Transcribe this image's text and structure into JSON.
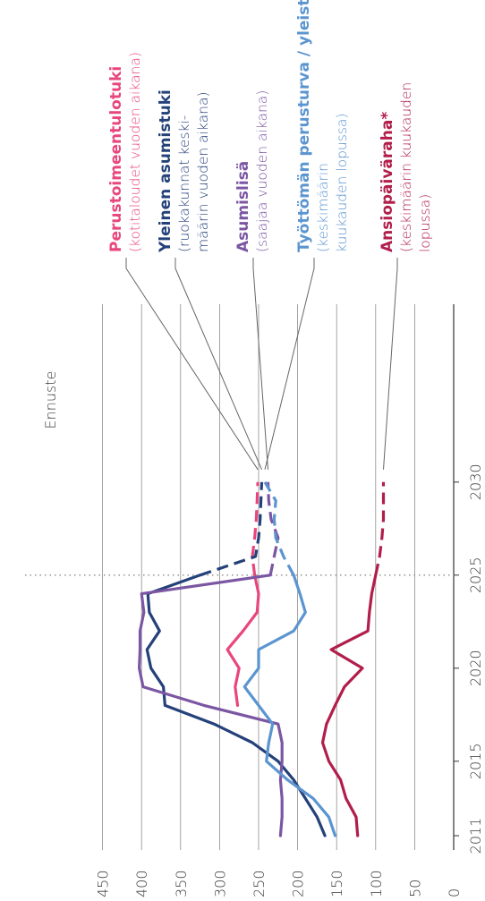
{
  "chart_data": {
    "type": "line",
    "orientation": "rotated-90-ccw",
    "x": [
      2011,
      2012,
      2013,
      2014,
      2015,
      2016,
      2017,
      2018,
      2019,
      2020,
      2021,
      2022,
      2023,
      2024,
      2025,
      2026,
      2027,
      2028,
      2029,
      2030
    ],
    "x_ticks": [
      "2011",
      "2015",
      "2020",
      "2025",
      "2030"
    ],
    "y_ticks": [
      "0",
      "50",
      "100",
      "150",
      "200",
      "250",
      "300",
      "350",
      "400",
      "450"
    ],
    "ylim": [
      0,
      450
    ],
    "forecast_start": 2025,
    "forecast_label": "Ennuste",
    "grid": true,
    "series": [
      {
        "name": "Perustoimeentulotuki",
        "description": "(kotitaloudet vuoden aikana)",
        "color": "#e8467c",
        "values": [
          null,
          null,
          null,
          null,
          null,
          null,
          null,
          277,
          280,
          275,
          290,
          270,
          252,
          250,
          255,
          258,
          255,
          253,
          252,
          251
        ],
        "forecast_from": 2025
      },
      {
        "name": "Yleinen asumistuki",
        "description": "(ruokakunnat keski-|määrin vuoden aikana)",
        "color": "#24417a",
        "values": [
          165,
          175,
          190,
          205,
          225,
          258,
          307,
          370,
          372,
          388,
          393,
          377,
          390,
          392,
          325,
          254,
          250,
          248,
          247,
          246
        ],
        "forecast_from": 2025
      },
      {
        "name": "Asumislisä",
        "description": "(saajaa vuoden aikana)",
        "color": "#7b56a3",
        "values": [
          222,
          220,
          220,
          222,
          220,
          220,
          225,
          320,
          398,
          403,
          402,
          402,
          397,
          400,
          235,
          230,
          225,
          234,
          237,
          238
        ],
        "forecast_from": 2025
      },
      {
        "name": "Työttömän perusturva / yleistuki",
        "description": "(keskimäärin|kuukauden lopussa)",
        "color": "#5b95d0",
        "values": [
          152,
          160,
          180,
          213,
          240,
          237,
          232,
          250,
          268,
          250,
          250,
          205,
          190,
          197,
          205,
          218,
          228,
          230,
          228,
          242
        ],
        "forecast_from": 2025
      },
      {
        "name": "Ansiopäiväraha*",
        "description": "(keskimäärin kuukauden|lopussa)",
        "color": "#b21e4b",
        "values": [
          123,
          125,
          138,
          145,
          160,
          168,
          163,
          152,
          140,
          117,
          157,
          110,
          108,
          105,
          100,
          95,
          92,
          90,
          90,
          90
        ],
        "forecast_from": 2025
      }
    ]
  }
}
